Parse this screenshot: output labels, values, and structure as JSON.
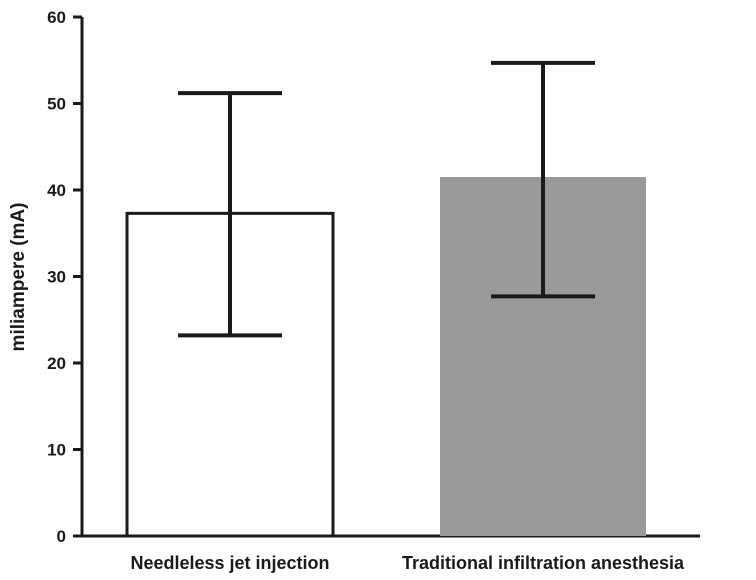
{
  "chart_data": {
    "type": "bar",
    "title": "",
    "xlabel": "",
    "ylabel": "miliampere (mA)",
    "ylim": [
      0,
      60
    ],
    "yticks": [
      "0",
      "10",
      "20",
      "30",
      "40",
      "50",
      "60"
    ],
    "categories": [
      "Needleless jet injection",
      "Traditional infiltration anesthesia"
    ],
    "values": [
      37.3,
      41.5
    ],
    "error_low": [
      23.2,
      27.7
    ],
    "error_high": [
      51.2,
      54.7
    ],
    "bar_fills": [
      "#ffffff",
      "#999999"
    ],
    "bar_strokes": [
      "#1a1a1a",
      "none"
    ],
    "grid": false
  }
}
